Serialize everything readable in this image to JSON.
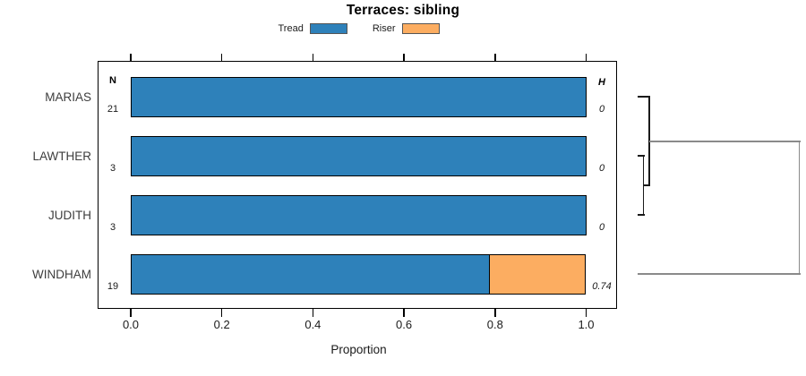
{
  "title": "Terraces: sibling",
  "chart_data": {
    "type": "bar",
    "orientation": "horizontal",
    "stacked": true,
    "title": "Terraces: sibling",
    "xlabel": "Proportion",
    "xlim": [
      0.0,
      1.0
    ],
    "x_ticks": [
      {
        "label": "0.0",
        "value": 0.0
      },
      {
        "label": "0.2",
        "value": 0.2
      },
      {
        "label": "0.4",
        "value": 0.4
      },
      {
        "label": "0.6",
        "value": 0.6
      },
      {
        "label": "0.8",
        "value": 0.8
      },
      {
        "label": "1.0",
        "value": 1.0
      }
    ],
    "col_headers": {
      "left": "N",
      "right": "H"
    },
    "legend": [
      {
        "label": "Tread",
        "color": "#2E81BA"
      },
      {
        "label": "Riser",
        "color": "#FCAD61"
      }
    ],
    "categories": [
      "MARIAS",
      "LAWTHER",
      "JUDITH",
      "WINDHAM"
    ],
    "series": [
      {
        "name": "Tread",
        "values": [
          1.0,
          1.0,
          1.0,
          0.79
        ]
      },
      {
        "name": "Riser",
        "values": [
          0.0,
          0.0,
          0.0,
          0.21
        ]
      }
    ],
    "rows": [
      {
        "label": "MARIAS",
        "n": "21",
        "tread": 1.0,
        "riser": 0.0,
        "h": "0"
      },
      {
        "label": "LAWTHER",
        "n": "3",
        "tread": 1.0,
        "riser": 0.0,
        "h": "0"
      },
      {
        "label": "JUDITH",
        "n": "3",
        "tread": 1.0,
        "riser": 0.0,
        "h": "0"
      },
      {
        "label": "WINDHAM",
        "n": "19",
        "tread": 0.79,
        "riser": 0.21,
        "h": "0.74"
      }
    ],
    "dendrogram": {
      "leaves": [
        "MARIAS",
        "LAWTHER",
        "JUDITH",
        "WINDHAM"
      ],
      "merges": [
        {
          "a": "L1",
          "b": "L2",
          "h": 0,
          "color": "#1a1a1a"
        },
        {
          "a": "L0",
          "b": "M0",
          "h": 0,
          "color": "#1a1a1a"
        },
        {
          "a": "M1",
          "b": "L3",
          "h": 0.74,
          "color": "#8a8a8a"
        }
      ]
    },
    "colors": {
      "tread": "#2E81BA",
      "riser": "#FCAD61",
      "bar_border": "#000000",
      "box_border": "#000000"
    }
  }
}
